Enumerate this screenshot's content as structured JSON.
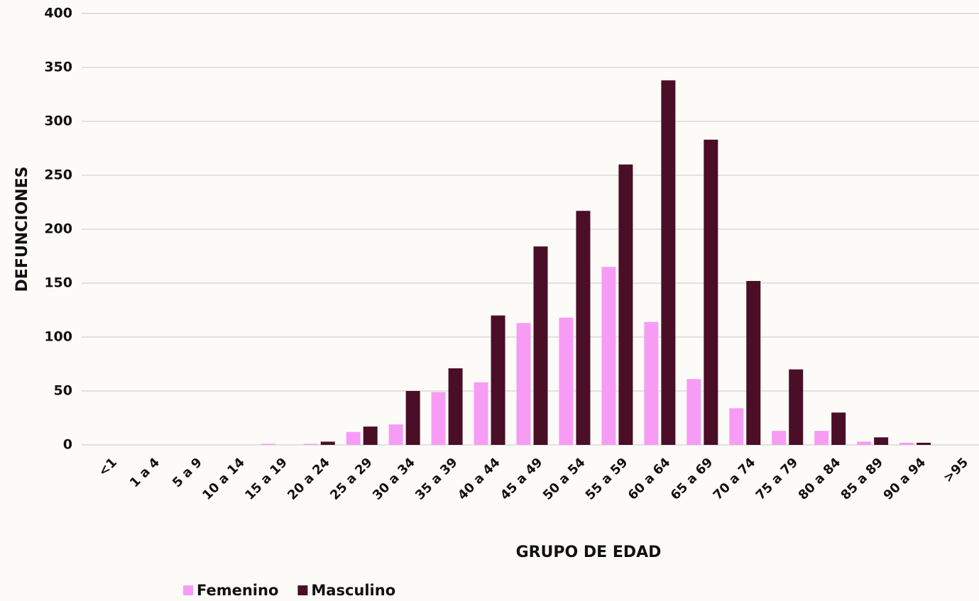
{
  "chart_data": {
    "type": "bar",
    "x_label": "GRUPO DE EDAD",
    "y_label": "DEFUNCIONES",
    "categories": [
      "<1",
      "1 a 4",
      "5 a 9",
      "10 a 14",
      "15 a 19",
      "20 a 24",
      "25 a 29",
      "30 a 34",
      "35 a 39",
      "40 a 44",
      "45 a 49",
      "50 a 54",
      "55 a 59",
      "60 a 64",
      "65 a 69",
      "70 a 74",
      "75 a 79",
      "80 a 84",
      "85 a 89",
      "90 a 94",
      ">95"
    ],
    "series": [
      {
        "name": "Femenino",
        "color": "#f79cf5",
        "values": [
          0,
          0,
          0,
          0,
          1,
          1,
          12,
          19,
          49,
          58,
          113,
          118,
          165,
          114,
          61,
          34,
          13,
          13,
          3,
          2,
          0
        ]
      },
      {
        "name": "Masculino",
        "color": "#4a0e27",
        "values": [
          0,
          0,
          0,
          0,
          0,
          3,
          17,
          50,
          71,
          120,
          184,
          217,
          260,
          338,
          283,
          152,
          70,
          30,
          7,
          2,
          0
        ]
      }
    ],
    "ylim": [
      0,
      400
    ],
    "yticks": [
      0,
      50,
      100,
      150,
      200,
      250,
      300,
      350,
      400
    ],
    "grid": true,
    "legend": "bottom-left"
  }
}
